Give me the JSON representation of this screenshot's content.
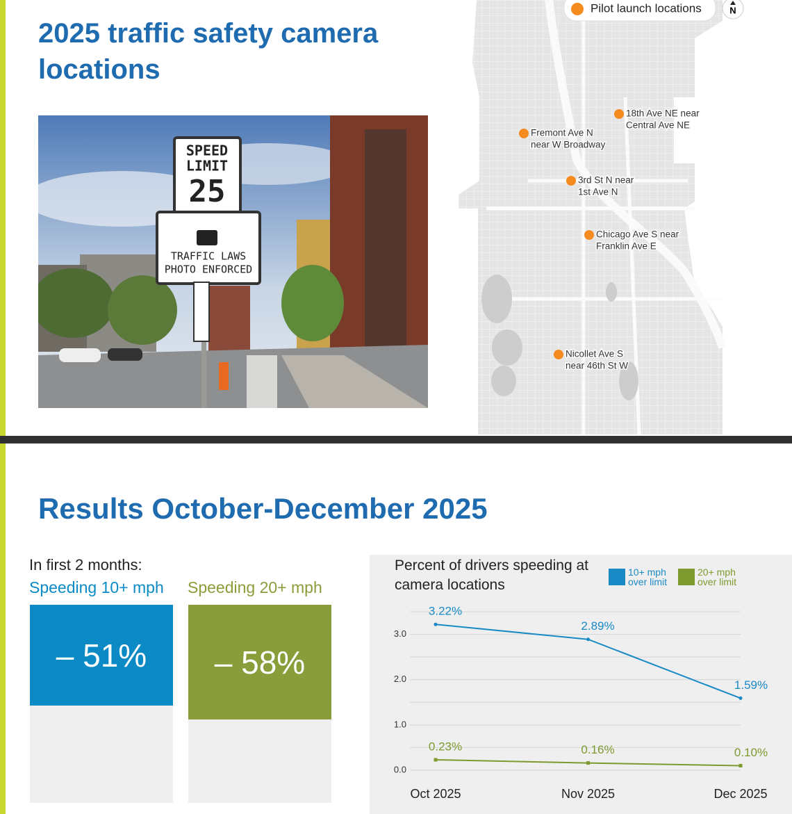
{
  "slide1": {
    "title": "2025 traffic safety camera locations",
    "photo": {
      "speed_sign": [
        "SPEED",
        "LIMIT",
        "25"
      ],
      "photo_sign": [
        "TRAFFIC LAWS",
        "PHOTO ENFORCED"
      ]
    },
    "map": {
      "legend": "Pilot launch locations",
      "north": "N",
      "locations": [
        {
          "lines": [
            "18th Ave NE near",
            "Central Ave NE"
          ]
        },
        {
          "lines": [
            "Fremont Ave N",
            "near W Broadway"
          ]
        },
        {
          "lines": [
            "3rd St N near",
            "1st Ave N"
          ]
        },
        {
          "lines": [
            "Chicago Ave S near",
            "Franklin Ave E"
          ]
        },
        {
          "lines": [
            "Nicollet Ave S",
            "near 46th St W"
          ]
        }
      ]
    }
  },
  "slide2": {
    "title": "Results October-December 2025",
    "intro": "In first 2 months:",
    "stats": [
      {
        "label": "Speeding 10+ mph",
        "value": -51,
        "value_label": "– 51%",
        "color": "#0b8ac5"
      },
      {
        "label": "Speeding 20+ mph",
        "value": -58,
        "value_label": "– 58%",
        "color": "#899d3a"
      }
    ]
  },
  "chart_data": {
    "type": "line",
    "title": "Percent of drivers speeding at camera locations",
    "categories": [
      "Oct 2025",
      "Nov 2025",
      "Dec 2025"
    ],
    "series": [
      {
        "name": "10+ mph over limit",
        "color": "#1a8ac6",
        "values": [
          3.22,
          2.89,
          1.59
        ],
        "value_labels": [
          "3.22%",
          "2.89%",
          "1.59%"
        ]
      },
      {
        "name": "20+ mph over limit",
        "color": "#7d9a2e",
        "values": [
          0.23,
          0.16,
          0.1
        ],
        "value_labels": [
          "0.23%",
          "0.16%",
          "0.10%"
        ]
      }
    ],
    "ylim": [
      0,
      3.5
    ],
    "yticks": [
      {
        "value": 0,
        "label": "0.0"
      },
      {
        "value": 1,
        "label": "1.0"
      },
      {
        "value": 2,
        "label": "2.0"
      },
      {
        "value": 3,
        "label": "3.0"
      }
    ],
    "grid_yticks": [
      0.5,
      1.5,
      2.5,
      3.5
    ],
    "grid": true
  }
}
